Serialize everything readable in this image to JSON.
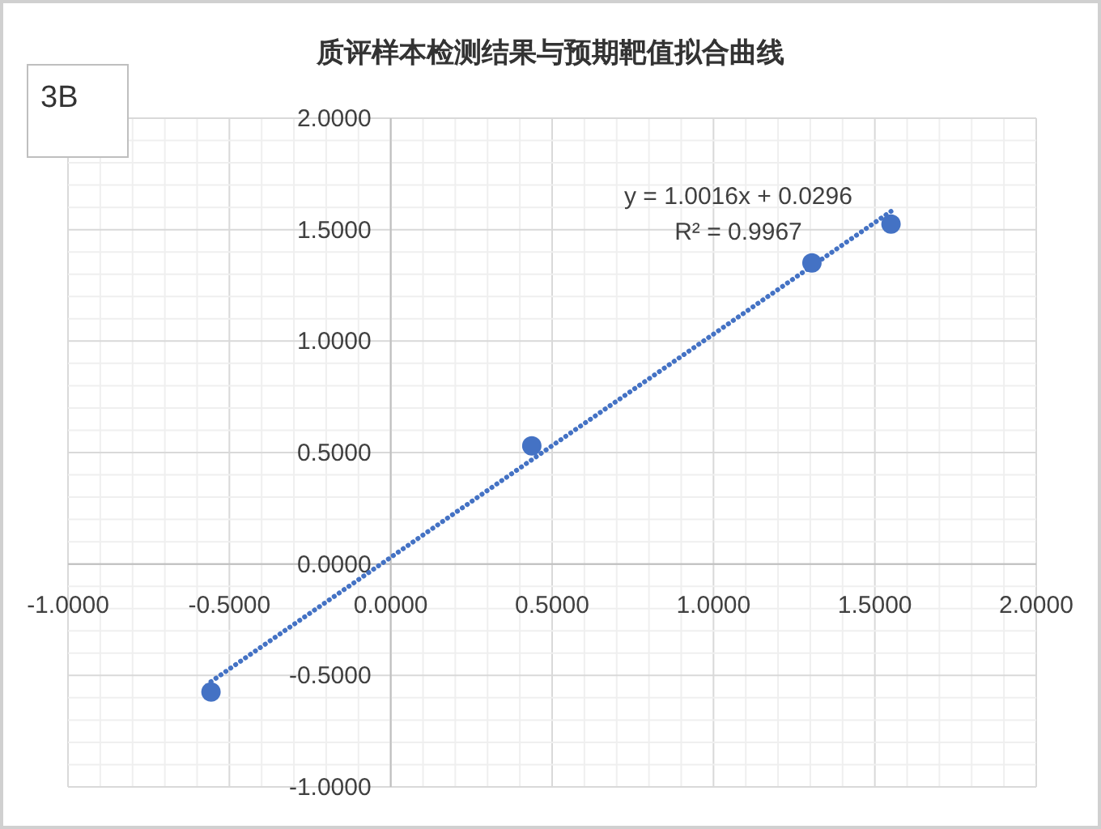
{
  "chart_data": {
    "type": "scatter",
    "title": "质评样本检测结果与预期靶值拟合曲线",
    "annotations": [
      "3B",
      "y = 1.0016x + 0.0296",
      "R² = 0.9967"
    ],
    "series": [
      {
        "color": "#4472c4",
        "marker": "circle",
        "x": [
          -0.557,
          0.437,
          1.305,
          1.55
        ],
        "values": [
          -0.574,
          0.53,
          1.351,
          1.525
        ]
      },
      {
        "type": "line",
        "color": "#4472c4",
        "line_style": "dotted",
        "x": [
          -0.557,
          1.55
        ],
        "values": [
          -0.528,
          1.582
        ]
      }
    ],
    "xlim": [
      -1,
      2
    ],
    "xticks": [
      {
        "value": -1,
        "label": "-1.0000"
      },
      {
        "value": -0.5,
        "label": "-0.5000"
      },
      {
        "value": 0,
        "label": "0.0000"
      },
      {
        "value": 0.5,
        "label": "0.5000"
      },
      {
        "value": 1,
        "label": "1.0000"
      },
      {
        "value": 1.5,
        "label": "1.5000"
      },
      {
        "value": 2,
        "label": "2.0000"
      }
    ],
    "ylim": [
      -1,
      2
    ],
    "yticks": [
      {
        "value": -1,
        "label": "-1.0000"
      },
      {
        "value": -0.5,
        "label": "-0.5000"
      },
      {
        "value": 0,
        "label": "0.0000"
      },
      {
        "value": 0.5,
        "label": "0.5000"
      },
      {
        "value": 1,
        "label": "1.0000"
      },
      {
        "value": 1.5,
        "label": "1.5000"
      },
      {
        "value": 2,
        "label": "2.0000"
      }
    ],
    "grid": true
  }
}
